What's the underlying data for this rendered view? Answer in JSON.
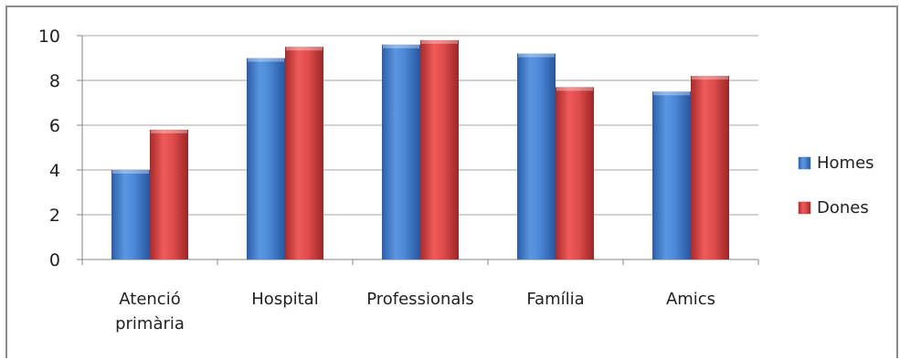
{
  "chart_data": {
    "type": "bar",
    "categories": [
      [
        "Atenció",
        "primària"
      ],
      [
        "Hospital"
      ],
      [
        "Professionals"
      ],
      [
        "Família"
      ],
      [
        "Amics"
      ]
    ],
    "series": [
      {
        "name": "Homes",
        "color": "#3f7ed0",
        "values": [
          4.0,
          9.0,
          9.6,
          9.2,
          7.5
        ]
      },
      {
        "name": "Dones",
        "color": "#d64343",
        "values": [
          5.8,
          9.5,
          9.8,
          7.7,
          8.2
        ]
      }
    ],
    "ylim": [
      0,
      10
    ],
    "yticks": [
      0,
      2,
      4,
      6,
      8,
      10
    ],
    "grid": true,
    "legend": "right",
    "title": "",
    "xlabel": "",
    "ylabel": ""
  }
}
